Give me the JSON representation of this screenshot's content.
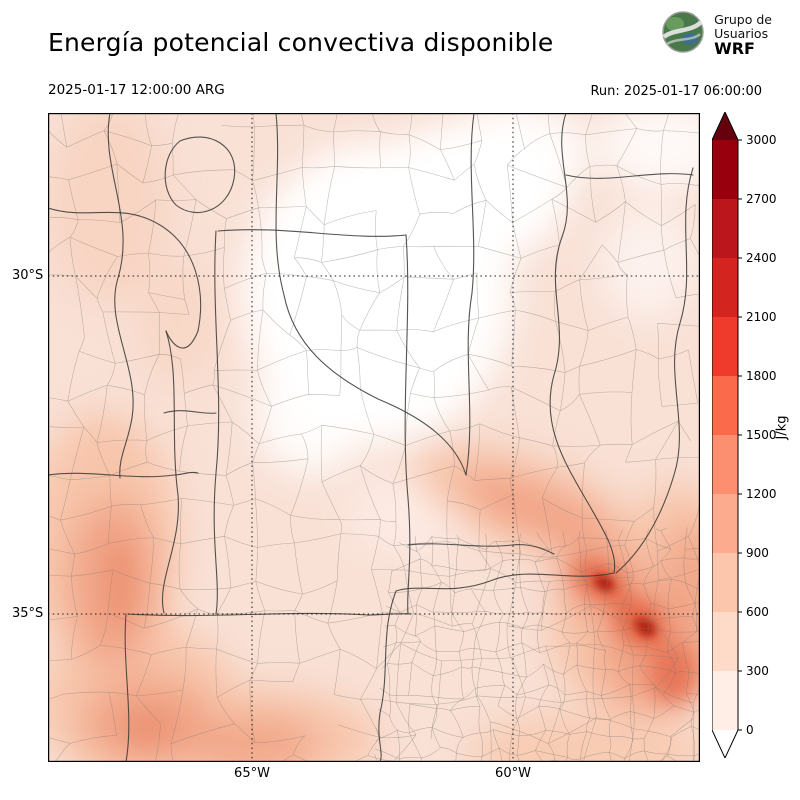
{
  "header": {
    "title": "Energía potencial convectiva disponible",
    "logo": {
      "line1": "Grupo de",
      "line2": "Usuarios",
      "line3": "WRF"
    }
  },
  "subheader": {
    "valid_time": "2025-01-17 12:00:00 ARG",
    "run": "Run: 2025-01-17 06:00:00"
  },
  "map": {
    "lat_labels": [
      "30°S",
      "35°S"
    ],
    "lon_labels": [
      "65°W",
      "60°W"
    ]
  },
  "colorbar": {
    "unit": "J/kg",
    "ticks": [
      "3000",
      "2700",
      "2400",
      "2100",
      "1800",
      "1500",
      "1200",
      "900",
      "600",
      "300",
      "0"
    ],
    "segment_colors_top_to_bottom": [
      "#99000d",
      "#bb161b",
      "#d42420",
      "#ef3b2c",
      "#fb6a4a",
      "#fc8f6f",
      "#fcab8f",
      "#fcc6ac",
      "#fddbc8",
      "#feeee6"
    ],
    "over_color": "#67000d",
    "under_color": "#ffffff"
  },
  "chart_data": {
    "type": "heatmap",
    "title": "Energía potencial convectiva disponible",
    "unit": "J/kg",
    "valid_time_label": "2025-01-17 12:00:00 ARG",
    "run_label": "Run: 2025-01-17 06:00:00",
    "colorbar_ticks": [
      0,
      300,
      600,
      900,
      1200,
      1500,
      1800,
      2100,
      2400,
      2700,
      3000
    ],
    "colorbar_extend": "both",
    "lat_gridlines": [
      "30°S",
      "35°S"
    ],
    "lon_gridlines": [
      "65°W",
      "60°W"
    ]
  }
}
